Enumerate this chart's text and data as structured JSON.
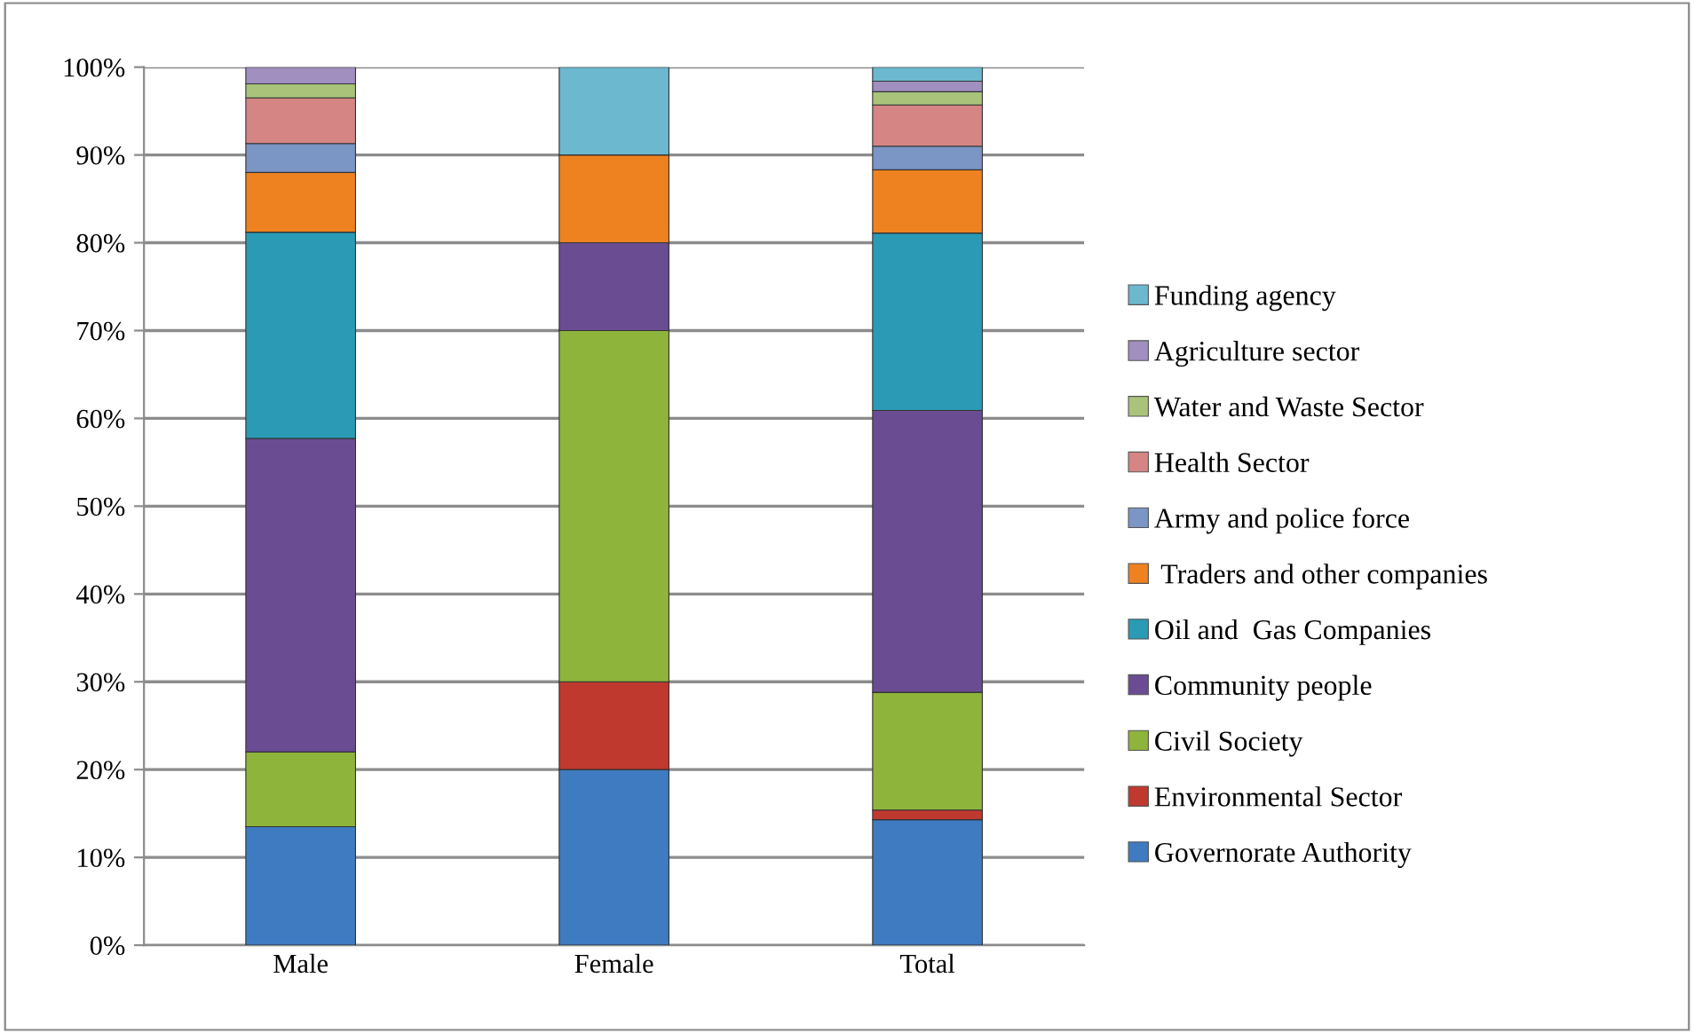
{
  "chart_data": {
    "type": "bar",
    "stacked": true,
    "categories": [
      "Male",
      "Female",
      "Total"
    ],
    "ylim": [
      0,
      100
    ],
    "yticks": [
      {
        "value": 0,
        "label": "0%"
      },
      {
        "value": 10,
        "label": "10%"
      },
      {
        "value": 20,
        "label": "20%"
      },
      {
        "value": 30,
        "label": "30%"
      },
      {
        "value": 40,
        "label": "40%"
      },
      {
        "value": 50,
        "label": "50%"
      },
      {
        "value": 60,
        "label": "60%"
      },
      {
        "value": 70,
        "label": "70%"
      },
      {
        "value": 80,
        "label": "80%"
      },
      {
        "value": 90,
        "label": "90%"
      },
      {
        "value": 100,
        "label": "100%"
      }
    ],
    "grid": "y",
    "legend": "right",
    "series": [
      {
        "name": "Governorate Authority",
        "color": "#3f7bc0",
        "values": [
          13.5,
          20,
          14.3
        ]
      },
      {
        "name": "Environmental Sector",
        "color": "#c0392f",
        "values": [
          0,
          10,
          1.1
        ]
      },
      {
        "name": "Civil Society",
        "color": "#8fb43c",
        "values": [
          8.5,
          40,
          13.4
        ]
      },
      {
        "name": "Community people",
        "color": "#6a4c93",
        "values": [
          35.7,
          10,
          32.1
        ]
      },
      {
        "name": "Oil and  Gas Companies",
        "color": "#2b9ab5",
        "values": [
          23.5,
          0,
          20.2
        ]
      },
      {
        "name": " Traders and other companies",
        "color": "#ee8220",
        "values": [
          6.8,
          10,
          7.2
        ]
      },
      {
        "name": "Army and police force",
        "color": "#7b95c4",
        "values": [
          3.3,
          0,
          2.7
        ]
      },
      {
        "name": "Health Sector",
        "color": "#d58584",
        "values": [
          5.2,
          0,
          4.7
        ]
      },
      {
        "name": "Water and Waste Sector",
        "color": "#a9c47a",
        "values": [
          1.6,
          0,
          1.5
        ]
      },
      {
        "name": "Agriculture sector",
        "color": "#a18fc0",
        "values": [
          1.9,
          0,
          1.2
        ]
      },
      {
        "name": "Funding agency",
        "color": "#6cb8cf",
        "values": [
          0,
          10,
          1.6
        ]
      }
    ]
  }
}
